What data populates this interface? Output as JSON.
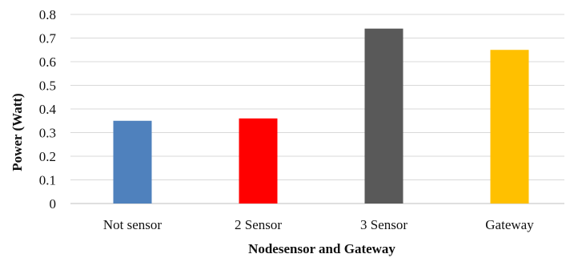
{
  "chart_data": {
    "type": "bar",
    "categories": [
      "Not sensor",
      "2 Sensor",
      "3 Sensor",
      "Gateway"
    ],
    "values": [
      0.35,
      0.36,
      0.74,
      0.65
    ],
    "colors": [
      "#4f81bd",
      "#ff0000",
      "#595959",
      "#ffc000"
    ],
    "title": "",
    "xlabel": "Nodesensor and Gateway",
    "ylabel": "Power (Watt)",
    "ylim": [
      0,
      0.8
    ],
    "yticks": [
      "0",
      "0.1",
      "0.2",
      "0.3",
      "0.4",
      "0.5",
      "0.6",
      "0.7",
      "0.8"
    ],
    "grid": true,
    "legend": "none"
  }
}
